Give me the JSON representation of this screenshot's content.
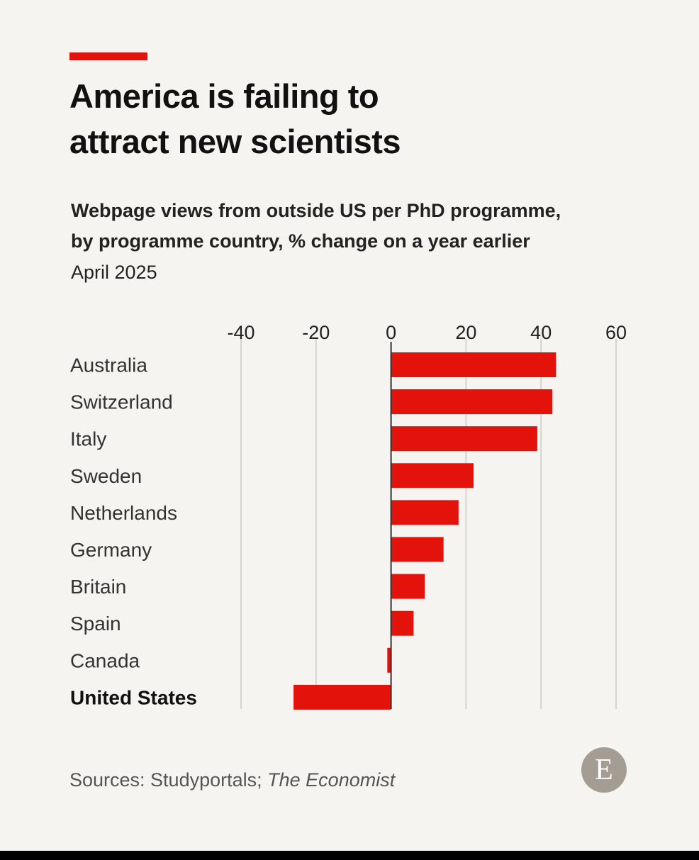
{
  "header": {
    "title_line1": "America is failing to",
    "title_line2": "attract new scientists",
    "subtitle_line1": "Webpage views from outside US per PhD programme,",
    "subtitle_line2": "by programme country, % change on a year earlier",
    "date": "April 2025"
  },
  "footer": {
    "sources_prefix": "Sources: Studyportals; ",
    "sources_italic": "The Economist",
    "logo_letter": "E"
  },
  "colors": {
    "accent": "#e3120b",
    "bar": "#e3120b",
    "background": "#f5f4f0",
    "gridline": "#d6d4ce",
    "zero_line": "#333333",
    "logo": "#a49d93"
  },
  "chart_data": {
    "type": "bar",
    "orientation": "horizontal",
    "categories": [
      "Australia",
      "Switzerland",
      "Italy",
      "Sweden",
      "Netherlands",
      "Germany",
      "Britain",
      "Spain",
      "Canada",
      "United States"
    ],
    "values": [
      44,
      43,
      39,
      22,
      18,
      14,
      9,
      6,
      -1,
      -26
    ],
    "highlight_category": "United States",
    "x_ticks": [
      -40,
      -20,
      0,
      20,
      40,
      60
    ],
    "xlim": [
      -40,
      60
    ],
    "grid": true
  }
}
